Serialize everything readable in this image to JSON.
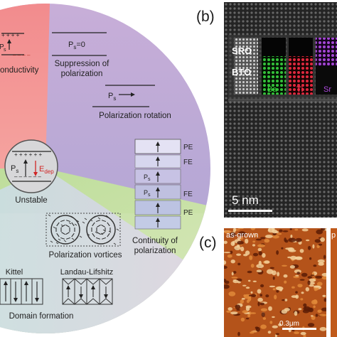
{
  "figure": {
    "colors": {
      "conductivity_sector": "#f28d8f",
      "purple_sector": "#c9afd6",
      "vortex_sector": "#c6dfa6",
      "domain_sector": "#c9e7ea",
      "stem_background": "#2a2a2a",
      "afm_orange": "#c4601d"
    },
    "circle_labels": {
      "conductivity": "onductivity",
      "suppression_line1": "Suppression of",
      "suppression_line2": "polarization",
      "ps_zero": "P",
      "ps_zero_sub": "s",
      "ps_zero_rest": "=0",
      "rotation_ps": "P",
      "rotation_ps_sub": "s",
      "rotation_caption": "Polarization rotation",
      "unstable_caption": "Unstable",
      "unstable_ps": "P",
      "unstable_ps_sub": "s",
      "unstable_edep": "E",
      "unstable_edep_sub": "dep",
      "layers": [
        "PE",
        "FE",
        "FE",
        "PE"
      ],
      "layer_top": "PE",
      "continuity_line1": "Continuity of",
      "continuity_line2": "polarization",
      "vortices_caption": "Polarization vortices",
      "kittel": "Kittel",
      "landau": "Landau-Lifshitz",
      "domain_caption": "Domain formation"
    },
    "panel_b": {
      "label": "(b)",
      "sro": "SRO",
      "bto": "BTO",
      "scale_bar": "5 nm",
      "elements": [
        "Ba",
        "Ti",
        "Sr"
      ],
      "element_colors": [
        "#2fb32f",
        "#d8293c",
        "#9a3fc0"
      ]
    },
    "panel_c": {
      "label": "(c)",
      "tag": "as-grown",
      "tag2": "p",
      "scale_bar": "0.3μm"
    }
  }
}
